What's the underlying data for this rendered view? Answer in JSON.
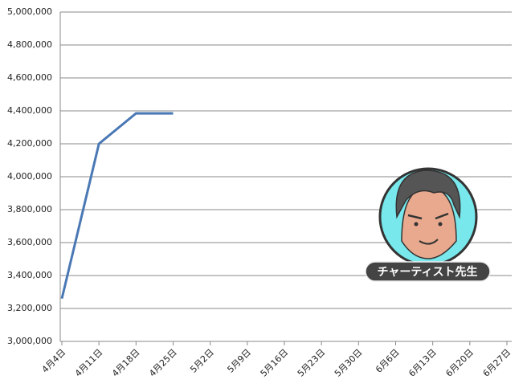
{
  "chart_data": {
    "type": "line",
    "categories": [
      "4月4日",
      "4月11日",
      "4月18日",
      "4月25日",
      "5月2日",
      "5月9日",
      "5月16日",
      "5月23日",
      "5月30日",
      "6月6日",
      "6月13日",
      "6月20日",
      "6月27日"
    ],
    "series": [
      {
        "name": null,
        "color": "#4a78b5",
        "values": [
          3260000,
          4200000,
          4385000,
          4385000,
          null,
          null,
          null,
          null,
          null,
          null,
          null,
          null,
          null
        ]
      }
    ],
    "ylim": [
      3000000,
      5000000
    ],
    "yticks": [
      {
        "value": 3000000,
        "label": "3,000,000"
      },
      {
        "value": 3200000,
        "label": "3,200,000"
      },
      {
        "value": 3400000,
        "label": "3,400,000"
      },
      {
        "value": 3600000,
        "label": "3,600,000"
      },
      {
        "value": 3800000,
        "label": "3,800,000"
      },
      {
        "value": 4000000,
        "label": "4,000,000"
      },
      {
        "value": 4200000,
        "label": "4,200,000"
      },
      {
        "value": 4400000,
        "label": "4,400,000"
      },
      {
        "value": 4600000,
        "label": "4,600,000"
      },
      {
        "value": 4800000,
        "label": "4,800,000"
      },
      {
        "value": 5000000,
        "label": "5,000,000"
      }
    ],
    "grid": true,
    "annotation": "チャーティスト先生"
  }
}
